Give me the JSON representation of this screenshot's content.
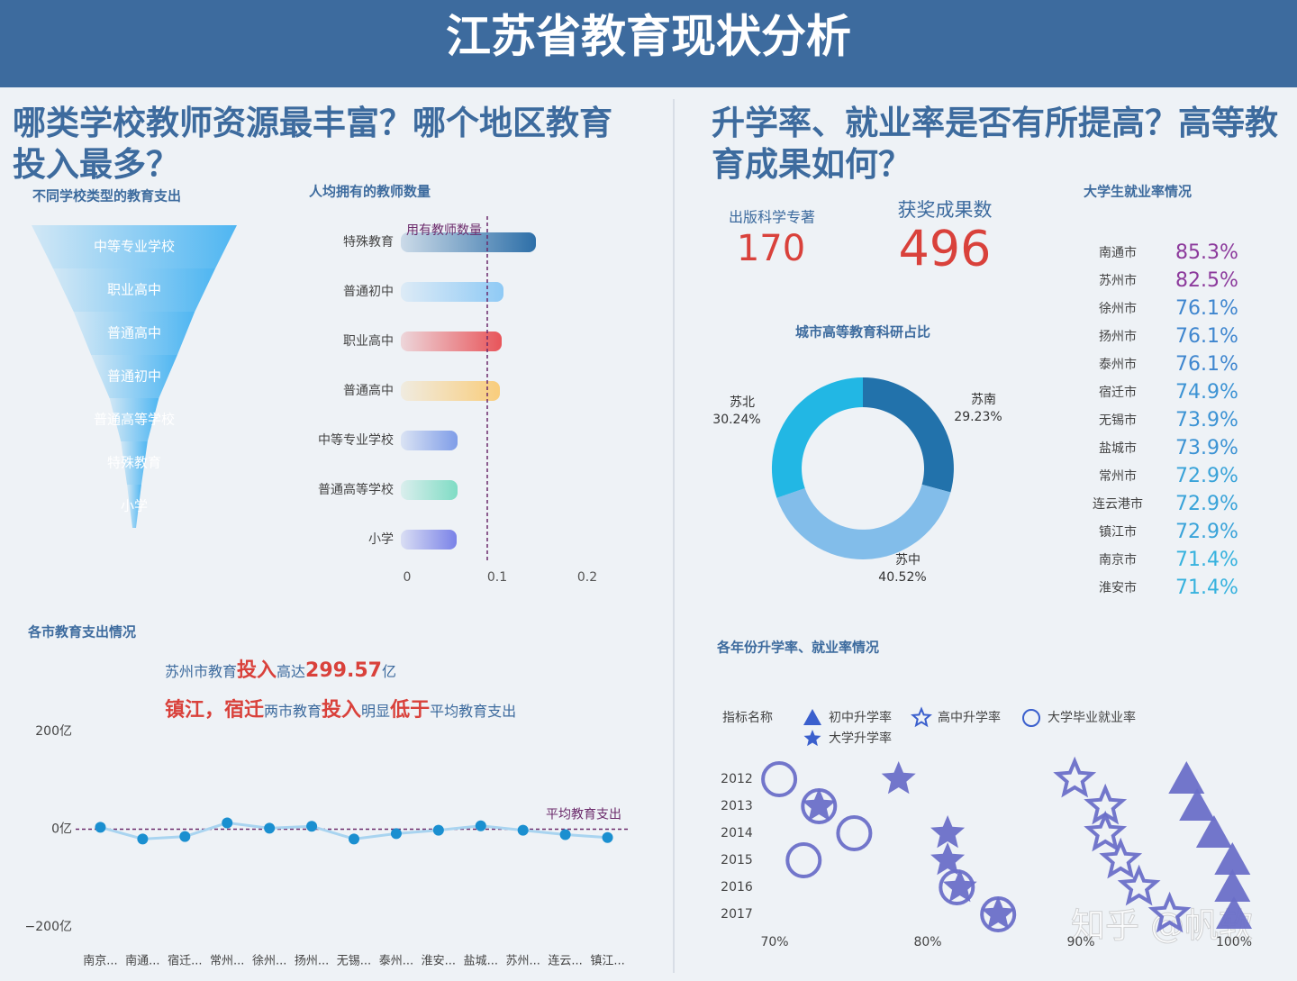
{
  "title": "江苏省教育现状分析",
  "sections": [
    "哪类学校教师资源最丰富？哪个地区教育投入最多？",
    "升学率、就业率是否有所提高？高等教育成果如何？"
  ],
  "kpis": [
    {
      "label": "出版科学专著",
      "value": 170
    },
    {
      "label": "获奖成果数",
      "value": 496
    }
  ],
  "watermark": "知乎 @帆软",
  "chart_data": [
    {
      "type": "funnel",
      "title": "不同学校类型的教育支出",
      "color": "#4fb6f2",
      "categories": [
        "中等专业学校",
        "职业高中",
        "普通高中",
        "普通初中",
        "普通高等学校",
        "特殊教育",
        "小学"
      ],
      "values": [
        100,
        79,
        59,
        42,
        24,
        13,
        7
      ]
    },
    {
      "type": "hbar",
      "title": "人均拥有的教师数量",
      "categories": [
        "特殊教育",
        "普通初中",
        "职业高中",
        "普通高中",
        "中等专业学校",
        "普通高等学校",
        "小学"
      ],
      "values": [
        0.143,
        0.107,
        0.105,
        0.103,
        0.056,
        0.056,
        0.055
      ],
      "colors": [
        "#2d6fa8",
        "#8fcaf5",
        "#e8555a",
        "#f9cd7c",
        "#7f9de8",
        "#7fdcc4",
        "#7a82e8"
      ],
      "xlim": [
        0,
        0.2
      ],
      "xticks": [
        0,
        0.1,
        0.2
      ],
      "reference": {
        "value": 0.089,
        "label": "用有教师数量"
      }
    },
    {
      "type": "line",
      "title": "各市教育支出情况",
      "color": "#1a8fd0",
      "annotations": [
        [
          {
            "text": "苏州市教育",
            "strong": false
          },
          {
            "text": "投入",
            "strong": true
          },
          {
            "text": "高达",
            "strong": false
          },
          {
            "text": "299.57",
            "strong": true
          },
          {
            "text": "亿",
            "strong": false
          }
        ],
        [
          {
            "text": "镇江，宿迁",
            "strong": true
          },
          {
            "text": "两市教育",
            "strong": false
          },
          {
            "text": "投入",
            "strong": true
          },
          {
            "text": "明显",
            "strong": false
          },
          {
            "text": "低于",
            "strong": true
          },
          {
            "text": "平均教育支出",
            "strong": false
          }
        ]
      ],
      "categories": [
        "南京...",
        "南通...",
        "宿迁...",
        "常州...",
        "徐州...",
        "扬州...",
        "无锡...",
        "泰州...",
        "淮安...",
        "盐城...",
        "苏州...",
        "连云...",
        "镇江..."
      ],
      "values": [
        4,
        -20,
        -15,
        13,
        2,
        6,
        -20,
        -9,
        -2,
        7,
        -2,
        -11,
        -17
      ],
      "ylim": [
        -200,
        200
      ],
      "yticks": [
        {
          "value": 200,
          "label": "200亿"
        },
        {
          "value": 0,
          "label": "0亿"
        },
        {
          "value": -200,
          "label": "−200亿"
        }
      ],
      "reference": {
        "value": 0,
        "label": "平均教育支出"
      }
    },
    {
      "type": "donut",
      "title": "城市高等教育科研占比",
      "categories": [
        "苏南",
        "苏中",
        "苏北"
      ],
      "values": [
        29.23,
        40.52,
        30.24
      ],
      "value_labels": [
        "29.23%",
        "40.52%",
        "30.24%"
      ],
      "colors": [
        "#2272ab",
        "#82bdea",
        "#22b7e4"
      ]
    },
    {
      "type": "list",
      "title": "大学生就业率情况",
      "categories": [
        "南通市",
        "苏州市",
        "徐州市",
        "扬州市",
        "泰州市",
        "宿迁市",
        "无锡市",
        "盐城市",
        "常州市",
        "连云港市",
        "镇江市",
        "南京市",
        "淮安市"
      ],
      "values": [
        85.3,
        82.5,
        76.1,
        76.1,
        76.1,
        74.9,
        73.9,
        73.9,
        72.9,
        72.9,
        72.9,
        71.4,
        71.4
      ],
      "value_labels": [
        "85.3%",
        "82.5%",
        "76.1%",
        "76.1%",
        "76.1%",
        "74.9%",
        "73.9%",
        "73.9%",
        "72.9%",
        "72.9%",
        "72.9%",
        "71.4%",
        "71.4%"
      ],
      "colors": [
        "#8c3a9c",
        "#8c3a9c",
        "#3f86cf",
        "#3f86cf",
        "#3f86cf",
        "#3c93d4",
        "#3c93d4",
        "#3c93d4",
        "#39a3d9",
        "#39a3d9",
        "#39a3d9",
        "#36b2de",
        "#36b2de"
      ]
    },
    {
      "type": "scatter",
      "title": "各年份升学率、就业率情况",
      "legend_title": "指标名称",
      "categories": [
        "2012",
        "2013",
        "2014",
        "2015",
        "2016",
        "2017"
      ],
      "xlim": [
        70,
        100
      ],
      "xticks": [
        {
          "value": 70,
          "label": "70%"
        },
        {
          "value": 80,
          "label": "80%"
        },
        {
          "value": 90,
          "label": "90%"
        },
        {
          "value": 100,
          "label": "100%"
        }
      ],
      "series": [
        {
          "name": "初中升学率",
          "marker": "triangle",
          "color": "#6a6fc8",
          "values": [
            96.9,
            97.6,
            98.7,
            99.9,
            99.9,
            100
          ]
        },
        {
          "name": "高中升学率",
          "marker": "star-outline",
          "color": "#6a6fc8",
          "values": [
            89.6,
            91.6,
            91.6,
            92.6,
            93.8,
            95.8
          ]
        },
        {
          "name": "大学毕业就业率",
          "marker": "circle-outline",
          "color": "#6a6fc8",
          "values": [
            70.3,
            72.9,
            75.2,
            71.9,
            81.9,
            84.6
          ]
        },
        {
          "name": "大学升学率",
          "marker": "star",
          "color": "#6a6fc8",
          "values": [
            78.1,
            72.9,
            81.3,
            81.3,
            82.1,
            84.6
          ]
        }
      ]
    }
  ]
}
